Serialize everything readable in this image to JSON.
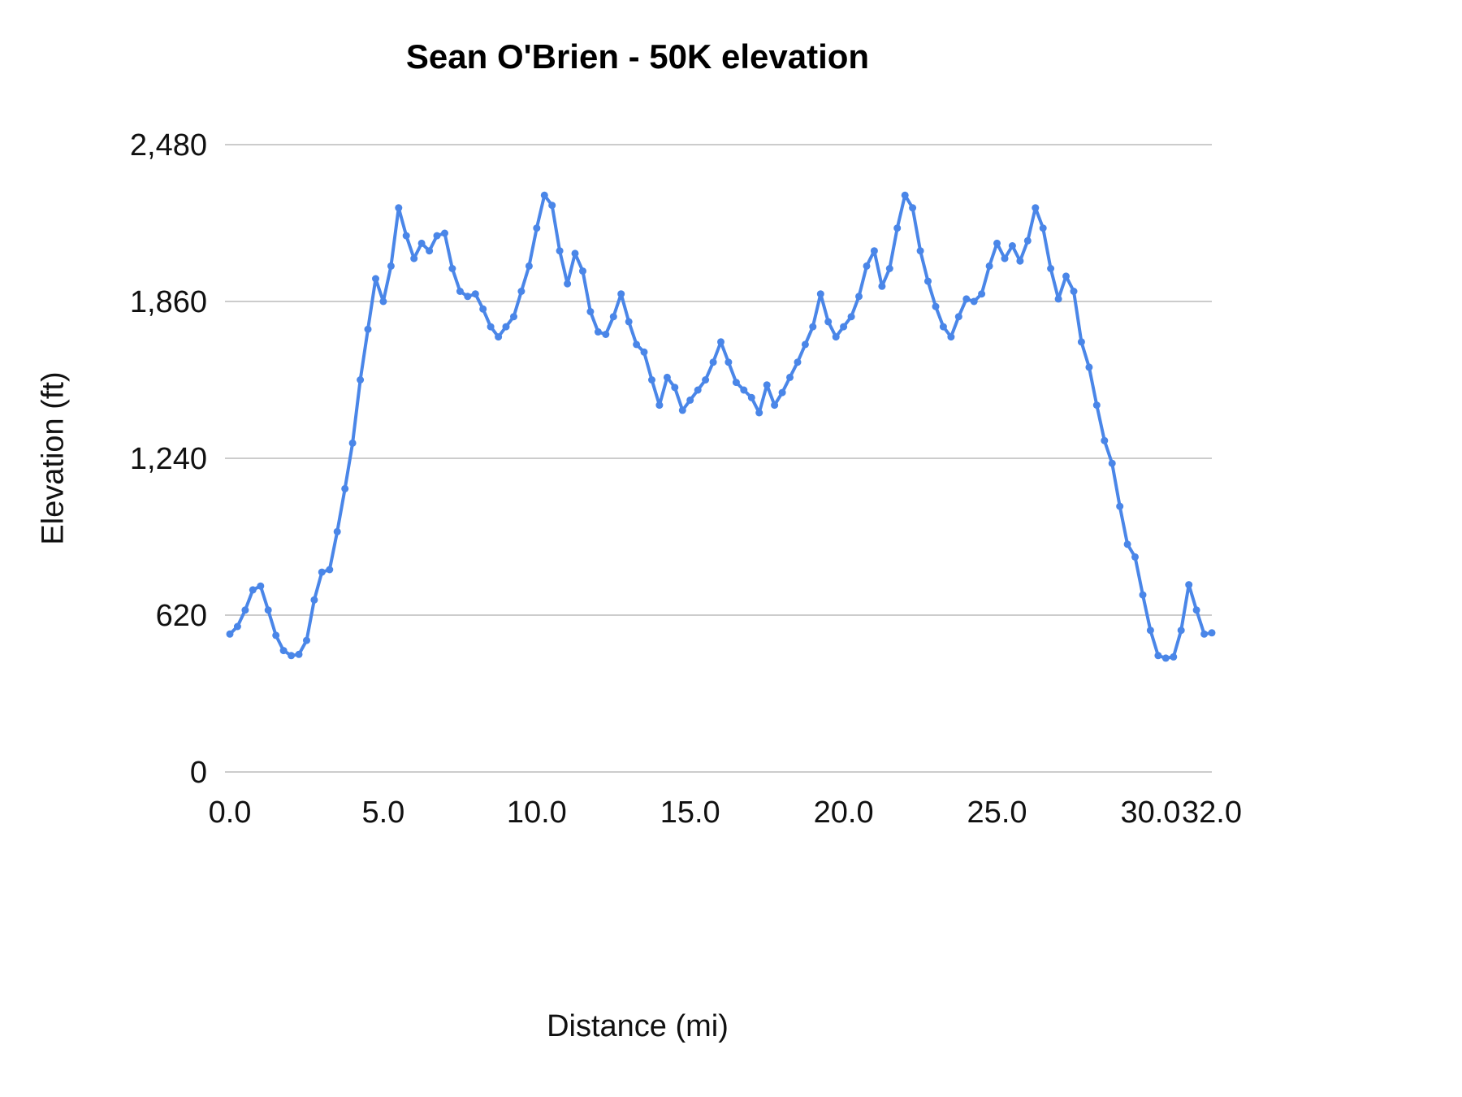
{
  "page": {
    "background": "#ffffff"
  },
  "colors": {
    "grid": "#cccccc",
    "text": "#111111",
    "title": "#000000",
    "series_blue": "#4a86e8"
  },
  "chart_data": {
    "type": "line",
    "title": "Sean O'Brien - 50K elevation",
    "xlabel": "Distance (mi)",
    "ylabel": "Elevation (ft)",
    "xlim": [
      0,
      32
    ],
    "ylim": [
      0,
      2480
    ],
    "xticks": [
      0,
      5,
      10,
      15,
      20,
      25,
      30,
      32
    ],
    "xtick_labels": [
      "0.0",
      "5.0",
      "10.0",
      "15.0",
      "20.0",
      "25.0",
      "30.0",
      "32.0"
    ],
    "yticks": [
      0,
      620,
      1240,
      1860,
      2480
    ],
    "ytick_labels": [
      "0",
      "620",
      "1,240",
      "1,860",
      "2,480"
    ],
    "grid": "horizontal-only",
    "legend": "none",
    "marker": "circle",
    "series": [
      {
        "name": "elevation",
        "color": "#4a86e8",
        "x_start_mi": 0,
        "x_step_mi": 0.25,
        "elevation_ft": [
          545,
          575,
          640,
          720,
          735,
          640,
          540,
          480,
          460,
          465,
          520,
          680,
          790,
          800,
          950,
          1120,
          1300,
          1550,
          1750,
          1950,
          1860,
          2000,
          2230,
          2120,
          2030,
          2090,
          2060,
          2120,
          2130,
          1990,
          1900,
          1880,
          1890,
          1830,
          1760,
          1720,
          1760,
          1800,
          1900,
          2000,
          2150,
          2280,
          2240,
          2060,
          1930,
          2050,
          1980,
          1820,
          1740,
          1730,
          1800,
          1890,
          1780,
          1690,
          1660,
          1550,
          1450,
          1560,
          1520,
          1430,
          1470,
          1510,
          1550,
          1620,
          1700,
          1620,
          1540,
          1510,
          1480,
          1420,
          1530,
          1450,
          1500,
          1560,
          1620,
          1690,
          1760,
          1890,
          1780,
          1720,
          1760,
          1800,
          1880,
          2000,
          2060,
          1920,
          1990,
          2150,
          2280,
          2230,
          2060,
          1940,
          1840,
          1760,
          1720,
          1800,
          1870,
          1860,
          1890,
          2000,
          2090,
          2030,
          2080,
          2020,
          2100,
          2230,
          2150,
          1990,
          1870,
          1960,
          1900,
          1700,
          1600,
          1450,
          1310,
          1220,
          1050,
          900,
          850,
          700,
          560,
          460,
          450,
          455,
          560,
          740,
          640,
          545,
          550
        ]
      }
    ]
  }
}
